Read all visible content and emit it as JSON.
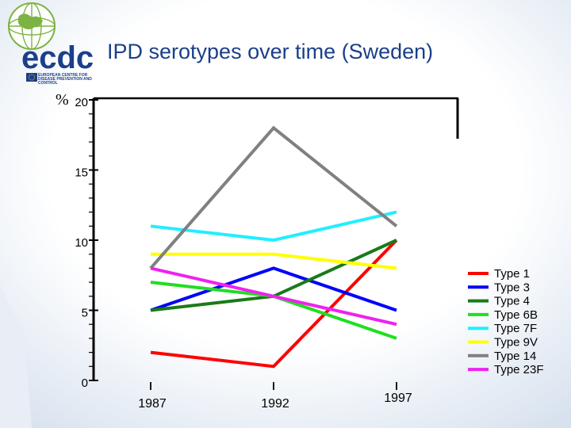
{
  "header": {
    "title": "IPD serotypes over time (Sweden)",
    "logo_wordmark": "ecdc",
    "logo_caption_lines": [
      "EUROPEAN CENTRE FOR",
      "DISEASE PREVENTION AND",
      "CONTROL"
    ]
  },
  "colors": {
    "brand_blue": "#1b3f8a",
    "brand_green": "#7cb342",
    "background_gradient_edge": "#d8e2ef"
  },
  "chart_data": {
    "type": "line",
    "unit_label": "%",
    "x": [
      "1987",
      "1992",
      "1997"
    ],
    "ylim": [
      0,
      20
    ],
    "yticks": [
      0,
      5,
      10,
      15,
      20
    ],
    "grid": false,
    "legend_position": "right",
    "series": [
      {
        "name": "Type 1",
        "color": "#ff0000",
        "values": [
          2,
          1,
          10
        ]
      },
      {
        "name": "Type 3",
        "color": "#0000ff",
        "values": [
          5,
          8,
          5
        ]
      },
      {
        "name": "Type 4",
        "color": "#1a7a1a",
        "values": [
          5,
          6,
          10
        ]
      },
      {
        "name": "Type 6B",
        "color": "#22dd22",
        "values": [
          7,
          6,
          3
        ]
      },
      {
        "name": "Type 7F",
        "color": "#22eeff",
        "values": [
          11,
          10,
          12
        ]
      },
      {
        "name": "Type 9V",
        "color": "#ffff00",
        "values": [
          9,
          9,
          8
        ]
      },
      {
        "name": "Type 14",
        "color": "#808080",
        "values": [
          8,
          18,
          11
        ]
      },
      {
        "name": "Type 23F",
        "color": "#ee22ee",
        "values": [
          8,
          6,
          4
        ]
      }
    ]
  }
}
